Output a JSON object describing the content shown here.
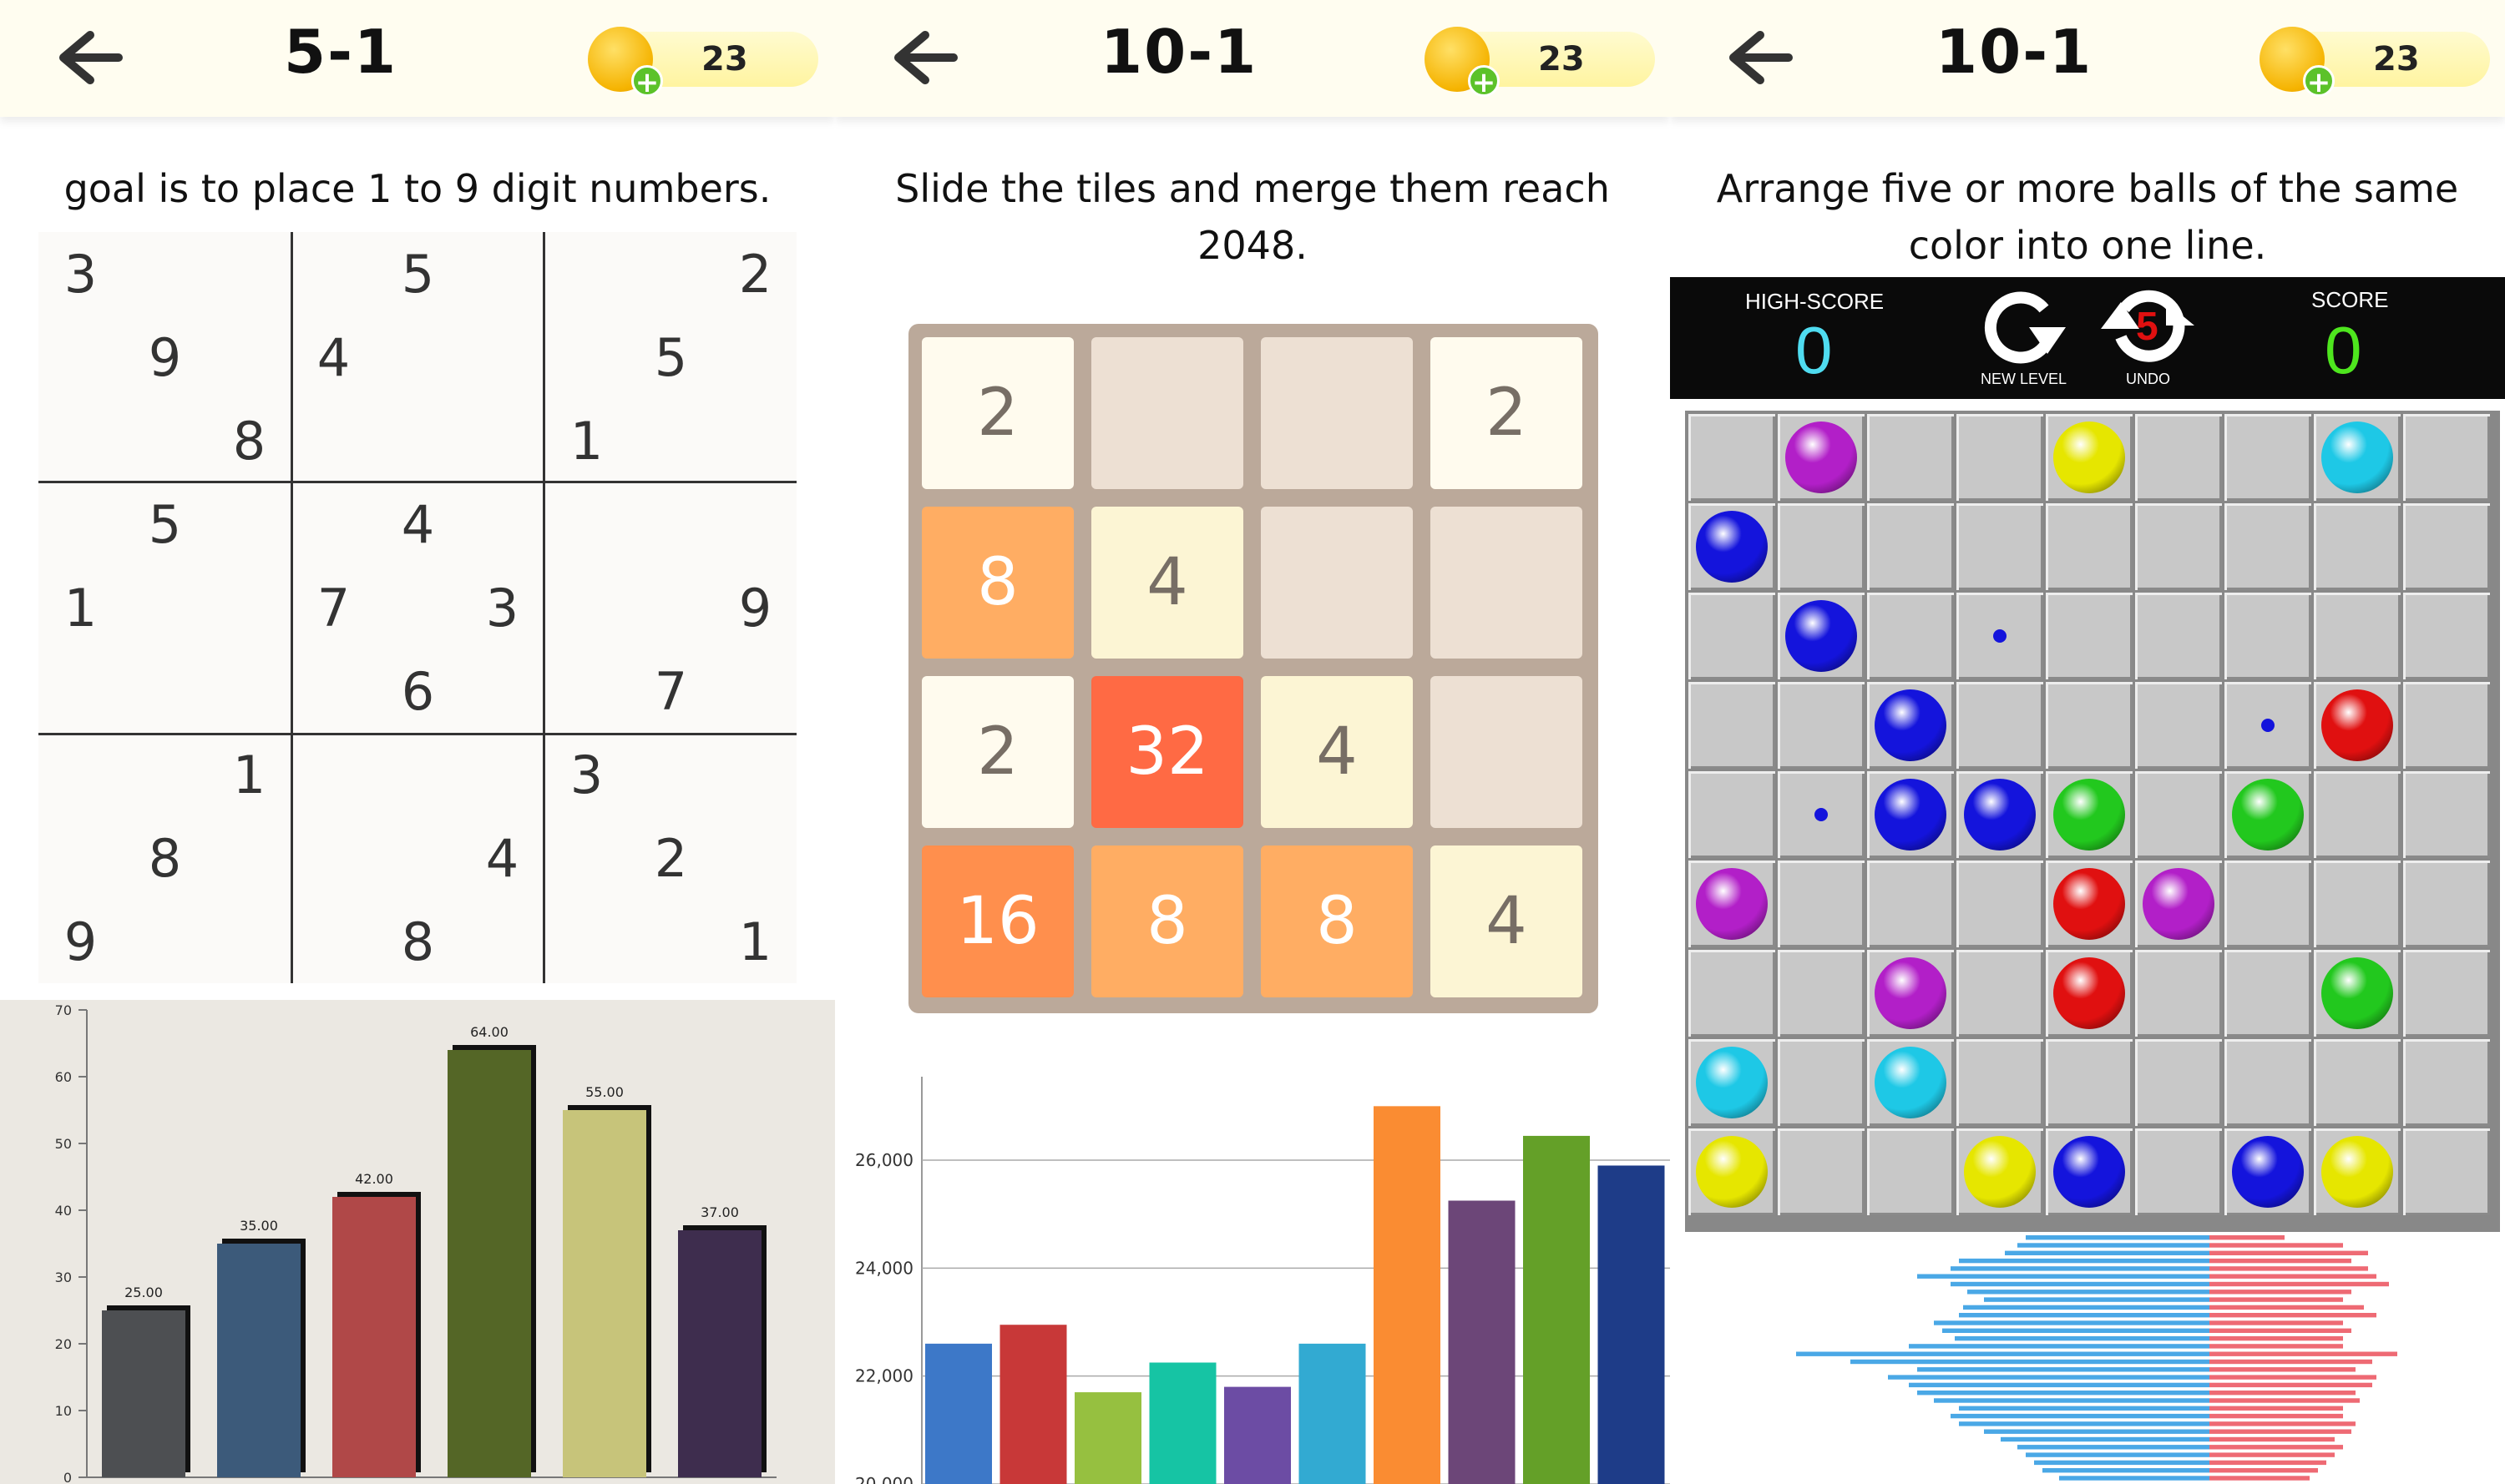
{
  "currency_count": "23",
  "panels": [
    {
      "level": "5-1",
      "instruction": "goal is to place 1 to 9 digit numbers.",
      "sudoku": [
        [
          "3",
          "",
          "",
          "",
          "5",
          "",
          "",
          "",
          "2"
        ],
        [
          "",
          "9",
          "",
          "4",
          "",
          "",
          "",
          "5",
          ""
        ],
        [
          "",
          "",
          "8",
          "",
          "",
          "",
          "1",
          "",
          ""
        ],
        [
          "",
          "5",
          "",
          "",
          "4",
          "",
          "",
          "",
          ""
        ],
        [
          "1",
          "",
          "",
          "7",
          "",
          "3",
          "",
          "",
          "9"
        ],
        [
          "",
          "",
          "",
          "",
          "6",
          "",
          "",
          "7",
          ""
        ],
        [
          "",
          "",
          "1",
          "",
          "",
          "",
          "3",
          "",
          ""
        ],
        [
          "",
          "8",
          "",
          "",
          "",
          "4",
          "",
          "2",
          ""
        ],
        [
          "9",
          "",
          "",
          "",
          "8",
          "",
          "",
          "",
          "1"
        ]
      ],
      "chart_data": {
        "type": "bar",
        "values": [
          25,
          35,
          42,
          64,
          55,
          37
        ],
        "value_labels": [
          "25.00",
          "35.00",
          "42.00",
          "64.00",
          "55.00",
          "37.00"
        ],
        "colors": [
          "#4d4f52",
          "#3c5a7a",
          "#b04848",
          "#546626",
          "#c7c47a",
          "#3e2d4e"
        ],
        "ylim": [
          0,
          70
        ],
        "yticks": [
          "0",
          "10",
          "20",
          "30",
          "40",
          "50",
          "60",
          "70"
        ]
      }
    },
    {
      "level": "10-1",
      "instruction": "Slide the tiles and merge them reach 2048.",
      "tiles": [
        [
          "2",
          "",
          "",
          "2"
        ],
        [
          "8",
          "4",
          "",
          ""
        ],
        [
          "2",
          "32",
          "4",
          ""
        ],
        [
          "16",
          "8",
          "8",
          "4"
        ]
      ],
      "chart_data": {
        "type": "bar",
        "values": [
          22600,
          22950,
          21700,
          22250,
          21800,
          22600,
          27000,
          25250,
          26450,
          25900
        ],
        "colors": [
          "#3d78c8",
          "#c83838",
          "#96c040",
          "#16c4a4",
          "#6c4ca4",
          "#32aad2",
          "#fa8c32",
          "#6c4678",
          "#64a028",
          "#1e3c88"
        ],
        "ylim": [
          20000,
          27500
        ],
        "yticks": [
          "20,000",
          "22,000",
          "24,000",
          "26,000"
        ]
      }
    },
    {
      "level": "10-1",
      "instruction": "Arrange five or more balls of the same color into one line.",
      "scoreboard": {
        "high_score_label": "HIGH-SCORE",
        "high_score": "0",
        "new_level_label": "NEW LEVEL",
        "undo_label": "UNDO",
        "undo_count": "5",
        "score_label": "SCORE",
        "score": "0"
      },
      "board": [
        [
          "",
          "purple",
          "",
          "",
          "yellow",
          "",
          "",
          "cyan",
          ""
        ],
        [
          "blue",
          "",
          "",
          "",
          "",
          "",
          "",
          "",
          ""
        ],
        [
          "",
          "blue",
          "",
          "b.",
          "",
          "",
          "",
          "",
          ""
        ],
        [
          "",
          "",
          "blue",
          "",
          "",
          "",
          "b.",
          "red",
          ""
        ],
        [
          "",
          "b.",
          "blue",
          "blue",
          "green",
          "",
          "green",
          "",
          ""
        ],
        [
          "purple",
          "",
          "",
          "",
          "red",
          "purple",
          "",
          "",
          ""
        ],
        [
          "",
          "",
          "purple",
          "",
          "red",
          "",
          "",
          "green",
          ""
        ],
        [
          "cyan",
          "",
          "cyan",
          "",
          "",
          "",
          "",
          "",
          ""
        ],
        [
          "yellow",
          "",
          "",
          "yellow",
          "blue",
          "",
          "blue",
          "yellow",
          ""
        ]
      ],
      "ball_colors": {
        "purple": "#b21fc8",
        "yellow": "#e6e600",
        "cyan": "#1ec8e6",
        "blue": "#1414dc",
        "red": "#e01010",
        "green": "#22c81e"
      },
      "chart_data": {
        "type": "bar",
        "orientation": "horizontal",
        "left_color": "#4aa8e6",
        "right_color": "#ee6a74",
        "left_values": [
          220,
          230,
          245,
          300,
          310,
          350,
          310,
          290,
          270,
          295,
          300,
          330,
          320,
          305,
          360,
          495,
          430,
          350,
          385,
          360,
          350,
          330,
          300,
          310,
          300,
          270,
          250,
          230,
          220,
          210,
          200,
          180
        ],
        "right_values": [
          90,
          160,
          190,
          170,
          190,
          200,
          215,
          170,
          160,
          185,
          200,
          160,
          170,
          160,
          160,
          225,
          195,
          175,
          200,
          195,
          175,
          180,
          160,
          160,
          175,
          170,
          150,
          160,
          150,
          140,
          130,
          120
        ]
      }
    }
  ]
}
